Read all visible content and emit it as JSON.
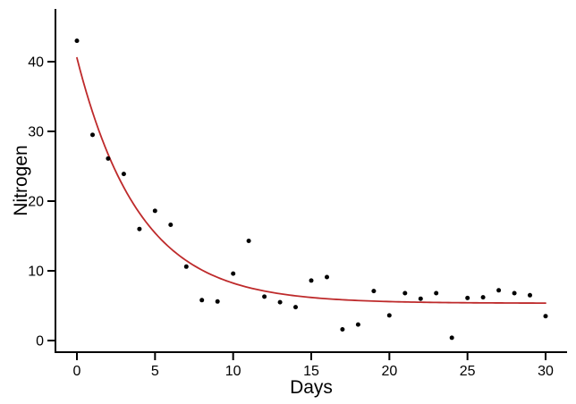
{
  "chart_data": {
    "type": "scatter",
    "title": "",
    "xlabel": "Days",
    "ylabel": "Nitrogen",
    "grid": false,
    "legend": null,
    "axis_color": "#000000",
    "point_color": "#000000",
    "x_ticks": [
      0,
      5,
      10,
      15,
      20,
      25,
      30
    ],
    "y_ticks": [
      0,
      10,
      20,
      30,
      40
    ],
    "xlim": [
      -1.5,
      31.8
    ],
    "ylim": [
      -1.7,
      47.6
    ],
    "points": {
      "x": [
        0,
        1,
        2,
        3,
        4,
        5,
        6,
        7,
        8,
        9,
        10,
        11,
        12,
        13,
        14,
        15,
        16,
        17,
        18,
        19,
        20,
        21,
        22,
        23,
        24,
        25,
        26,
        27,
        28,
        29,
        30
      ],
      "y": [
        43.0,
        29.5,
        26.1,
        23.9,
        16.0,
        18.6,
        16.6,
        10.6,
        5.8,
        5.6,
        9.6,
        14.3,
        6.3,
        5.5,
        4.8,
        8.6,
        9.1,
        1.6,
        2.3,
        7.1,
        3.6,
        6.8,
        6.0,
        6.8,
        0.4,
        6.1,
        6.2,
        7.2,
        6.8,
        6.5,
        3.5
      ]
    },
    "fit_curve": {
      "model": "y = c + a * exp(-b * x)",
      "a": 35.2,
      "b": 0.25,
      "c": 5.35,
      "x_range": [
        0,
        30
      ],
      "color": "#BE2A2B"
    }
  }
}
